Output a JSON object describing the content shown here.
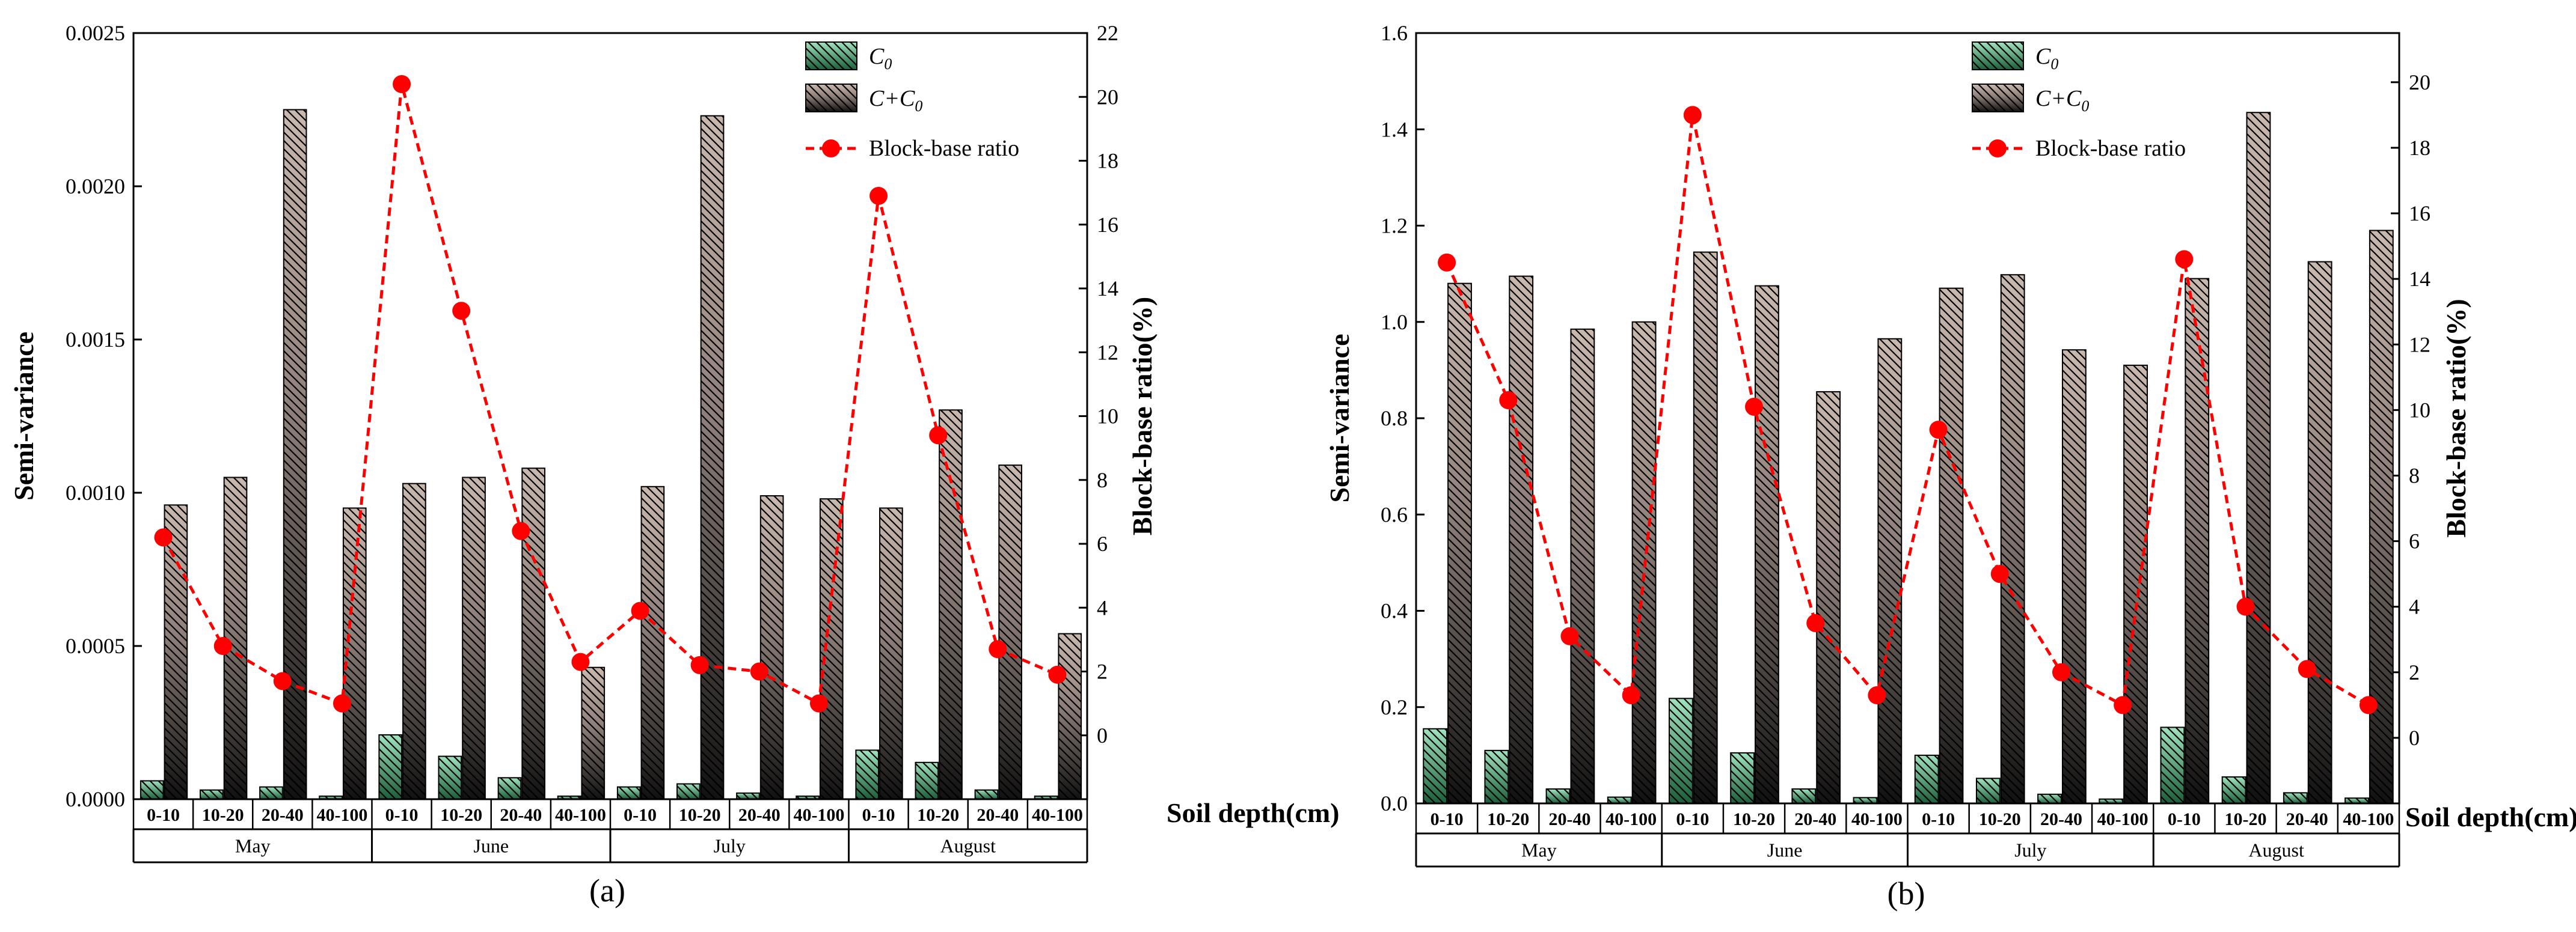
{
  "legend": {
    "c0_base": "C",
    "c0_sub": "0",
    "cc0_base": "C+C",
    "cc0_sub": "0",
    "ratio": "Block-base ratio"
  },
  "colors": {
    "c0_dark": "#1b5e3a",
    "c0_light": "#9fe3bf",
    "cc0_light": "#c9b8ae",
    "cc0_dark": "#111111",
    "ratio": "#ff0000"
  },
  "chart_data": [
    {
      "type": "bar",
      "panel_label": "(a)",
      "ylabel": "Semi-variance",
      "y2label": "Block-base ratio(%)",
      "xlabel": "Soil depth(cm)",
      "ylim": [
        0,
        0.0025
      ],
      "y_ticks": [
        "0.0000",
        "0.0005",
        "0.0010",
        "0.0015",
        "0.0020",
        "0.0025"
      ],
      "y2lim": [
        -2,
        22
      ],
      "y2_ticks": [
        "0",
        "2",
        "4",
        "6",
        "8",
        "10",
        "12",
        "14",
        "16",
        "18",
        "20",
        "22"
      ],
      "months": [
        "May",
        "June",
        "July",
        "August"
      ],
      "depths": [
        "0-10",
        "10-20",
        "20-40",
        "40-100"
      ],
      "categories": [
        "0-10",
        "10-20",
        "20-40",
        "40-100",
        "0-10",
        "10-20",
        "20-40",
        "40-100",
        "0-10",
        "10-20",
        "20-40",
        "40-100",
        "0-10",
        "10-20",
        "20-40",
        "40-100"
      ],
      "series": [
        {
          "name": "C0",
          "values": [
            6e-05,
            3e-05,
            4e-05,
            1e-05,
            0.00021,
            0.00014,
            7e-05,
            1e-05,
            4e-05,
            5e-05,
            2e-05,
            1e-05,
            0.00016,
            0.00012,
            3e-05,
            1e-05
          ]
        },
        {
          "name": "C+C0",
          "values": [
            0.00096,
            0.00105,
            0.00225,
            0.00095,
            0.00103,
            0.00105,
            0.00108,
            0.00043,
            0.00102,
            0.00223,
            0.00099,
            0.00098,
            0.00095,
            0.00127,
            0.00109,
            0.00054
          ]
        },
        {
          "name": "Block-base ratio",
          "axis": "right",
          "values": [
            6.2,
            2.8,
            1.7,
            1.0,
            20.4,
            13.3,
            6.4,
            2.3,
            3.9,
            2.2,
            2.0,
            1.0,
            16.9,
            9.4,
            2.7,
            1.9
          ]
        }
      ]
    },
    {
      "type": "bar",
      "panel_label": "(b)",
      "ylabel": "Semi-variance",
      "y2label": "Block-base ratio(%)",
      "xlabel": "Soil depth(cm)",
      "ylim": [
        0,
        1.6
      ],
      "y_ticks": [
        "0.0",
        "0.2",
        "0.4",
        "0.6",
        "0.8",
        "1.0",
        "1.2",
        "1.4",
        "1.6"
      ],
      "y2lim": [
        -2,
        21.5
      ],
      "y2_ticks": [
        "0",
        "2",
        "4",
        "6",
        "8",
        "10",
        "12",
        "14",
        "16",
        "18",
        "20"
      ],
      "months": [
        "May",
        "June",
        "July",
        "August"
      ],
      "depths": [
        "0-10",
        "10-20",
        "20-40",
        "40-100"
      ],
      "categories": [
        "0-10",
        "10-20",
        "20-40",
        "40-100",
        "0-10",
        "10-20",
        "20-40",
        "40-100",
        "0-10",
        "10-20",
        "20-40",
        "40-100",
        "0-10",
        "10-20",
        "20-40",
        "40-100"
      ],
      "series": [
        {
          "name": "C0",
          "values": [
            0.155,
            0.11,
            0.03,
            0.013,
            0.218,
            0.105,
            0.03,
            0.012,
            0.1,
            0.052,
            0.019,
            0.009,
            0.158,
            0.055,
            0.022,
            0.011
          ]
        },
        {
          "name": "C+C0",
          "values": [
            1.08,
            1.095,
            0.985,
            1.0,
            1.145,
            1.075,
            0.855,
            0.965,
            1.07,
            1.098,
            0.942,
            0.91,
            1.09,
            1.435,
            1.125,
            1.19
          ]
        },
        {
          "name": "Block-base ratio",
          "axis": "right",
          "values": [
            14.5,
            10.3,
            3.1,
            1.3,
            19.0,
            10.1,
            3.5,
            1.3,
            9.4,
            5.0,
            2.0,
            1.0,
            14.6,
            4.0,
            2.1,
            1.0
          ]
        }
      ]
    }
  ]
}
